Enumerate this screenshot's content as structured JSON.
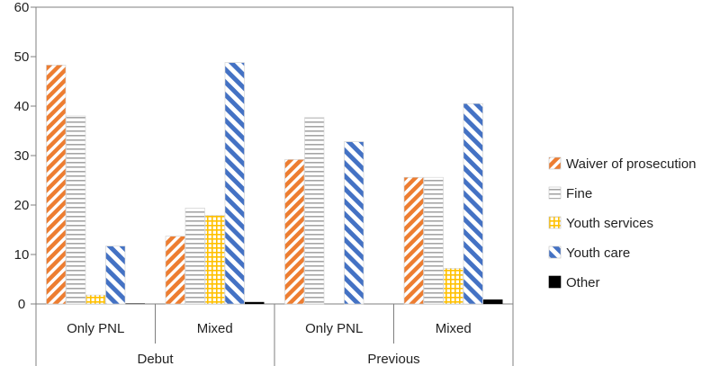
{
  "chart_data": {
    "type": "bar",
    "title": "",
    "xlabel": "",
    "ylabel": "",
    "ylim": [
      0,
      60
    ],
    "yticks": [
      0,
      10,
      20,
      30,
      40,
      50,
      60
    ],
    "grid": false,
    "legend_position": "right",
    "groups": [
      {
        "label": "Debut",
        "categories": [
          "Only PNL",
          "Mixed"
        ]
      },
      {
        "label": "Previous",
        "categories": [
          "Only PNL",
          "Mixed"
        ]
      }
    ],
    "series": [
      {
        "name": "Waiver of prosecution",
        "color": "#ed7d31",
        "pattern": "diagonal-stripes",
        "values": [
          48.3,
          13.7,
          29.2,
          25.6
        ]
      },
      {
        "name": "Fine",
        "color": "#a5a5a5",
        "pattern": "horizontal-lines",
        "values": [
          38.0,
          19.4,
          37.7,
          25.6
        ]
      },
      {
        "name": "Youth services",
        "color": "#ffc000",
        "pattern": "grid",
        "values": [
          1.8,
          17.9,
          0,
          7.2
        ]
      },
      {
        "name": "Youth care",
        "color": "#4472c4",
        "pattern": "wide-diagonal-stripes",
        "values": [
          11.7,
          48.8,
          32.8,
          40.5
        ]
      },
      {
        "name": "Other",
        "color": "#000000",
        "pattern": "solid",
        "values": [
          0.1,
          0.4,
          0,
          0.9
        ]
      }
    ]
  }
}
